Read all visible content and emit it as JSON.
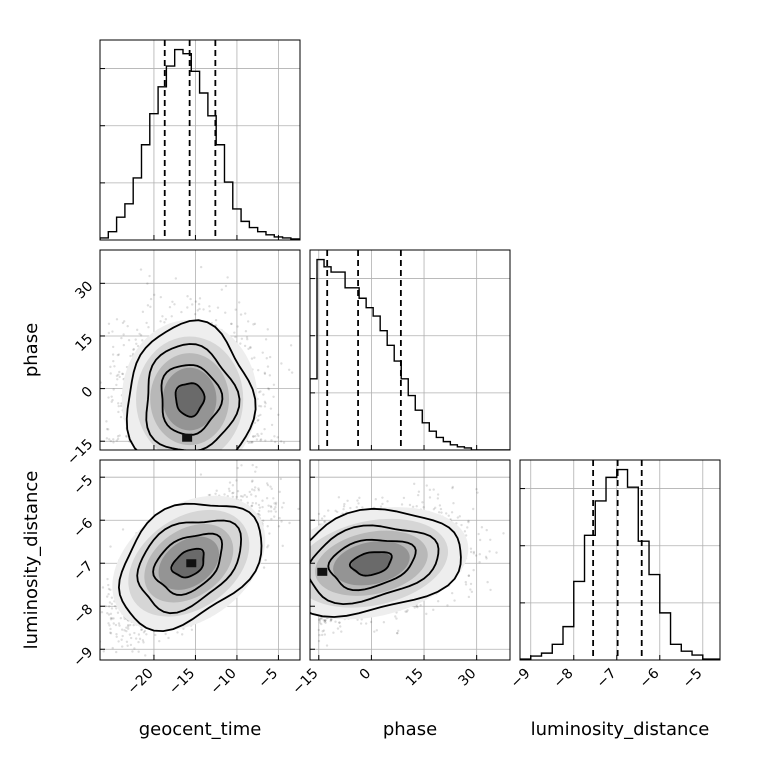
{
  "chart_data": {
    "type": "corner",
    "parameters": [
      "geocent_time",
      "phase",
      "luminosity_distance"
    ],
    "axis_labels": {
      "geocent_time": "geocent_time",
      "phase": "phase",
      "luminosity_distance": "luminosity_distance"
    },
    "ranges": {
      "geocent_time": [
        -26.5,
        -2.4
      ],
      "phase": [
        -17.5,
        39.5
      ],
      "luminosity_distance": [
        -9.25,
        -4.6
      ]
    },
    "ticks": {
      "geocent_time": [
        -20,
        -15,
        -10,
        -5
      ],
      "phase": [
        -15,
        0,
        15,
        30
      ],
      "luminosity_distance": [
        -9,
        -8,
        -7,
        -6,
        -5
      ]
    },
    "quantiles": {
      "geocent_time": [
        -18.7,
        -15.7,
        -12.6
      ],
      "phase": [
        -12.6,
        -3.8,
        8.4
      ],
      "luminosity_distance": [
        -7.55,
        -6.98,
        -6.42
      ]
    },
    "grid": true,
    "histograms": {
      "geocent_time": {
        "bin_edges": [
          -26.5,
          -25.5,
          -24.5,
          -23.5,
          -22.5,
          -21.5,
          -20.5,
          -19.5,
          -18.5,
          -17.5,
          -16.5,
          -15.5,
          -14.5,
          -13.5,
          -12.5,
          -11.5,
          -10.5,
          -9.5,
          -8.5,
          -7.5,
          -6.5,
          -5.5,
          -4.5,
          -3.5,
          -2.4
        ],
        "counts": [
          2,
          8,
          22,
          35,
          60,
          92,
          122,
          148,
          168,
          184,
          180,
          163,
          142,
          120,
          92,
          56,
          30,
          18,
          12,
          8,
          5,
          3,
          2,
          1
        ]
      },
      "phase": {
        "bin_edges": [
          -17.5,
          -15.5,
          -13.5,
          -11.5,
          -9.5,
          -7.5,
          -5.5,
          -3.5,
          -1.5,
          0.5,
          2.5,
          4.5,
          6.5,
          8.5,
          10.5,
          12.5,
          14.5,
          16.5,
          18.5,
          20.5,
          22.5,
          24.5,
          26.5,
          28.5,
          39.5
        ],
        "counts": [
          68,
          182,
          175,
          170,
          170,
          155,
          155,
          145,
          136,
          128,
          114,
          100,
          85,
          68,
          52,
          38,
          26,
          18,
          12,
          8,
          5,
          3,
          2,
          0
        ]
      },
      "luminosity_distance": {
        "bin_edges": [
          -9.25,
          -9.0,
          -8.75,
          -8.5,
          -8.25,
          -8.0,
          -7.75,
          -7.5,
          -7.25,
          -7.0,
          -6.75,
          -6.5,
          -6.25,
          -6.0,
          -5.75,
          -5.5,
          -5.25,
          -5.0,
          -4.6
        ],
        "counts": [
          1,
          4,
          7,
          16,
          34,
          80,
          127,
          162,
          186,
          194,
          176,
          121,
          87,
          48,
          16,
          9,
          5,
          1
        ]
      }
    },
    "joint": {
      "phase_vs_geocent_time": {
        "x": "geocent_time",
        "y": "phase",
        "center": [
          -15.7,
          -3.0
        ],
        "spread": [
          3.8,
          10.5
        ],
        "correlation": 0.0,
        "y_floor": -15.5,
        "contour_levels": 4,
        "peak": [
          -16.0,
          -14.0
        ]
      },
      "luminosity_distance_vs_geocent_time": {
        "x": "geocent_time",
        "y": "luminosity_distance",
        "center": [
          -15.8,
          -7.0
        ],
        "spread": [
          4.0,
          0.75
        ],
        "correlation": 0.72,
        "contour_levels": 4,
        "peak": [
          -15.5,
          -7.0
        ]
      },
      "luminosity_distance_vs_phase": {
        "x": "phase",
        "y": "luminosity_distance",
        "center": [
          0.0,
          -7.0
        ],
        "spread": [
          12.0,
          0.6
        ],
        "correlation": 0.35,
        "x_floor": -15.0,
        "contour_levels": 4,
        "peak": [
          -14.0,
          -7.2
        ]
      }
    }
  }
}
